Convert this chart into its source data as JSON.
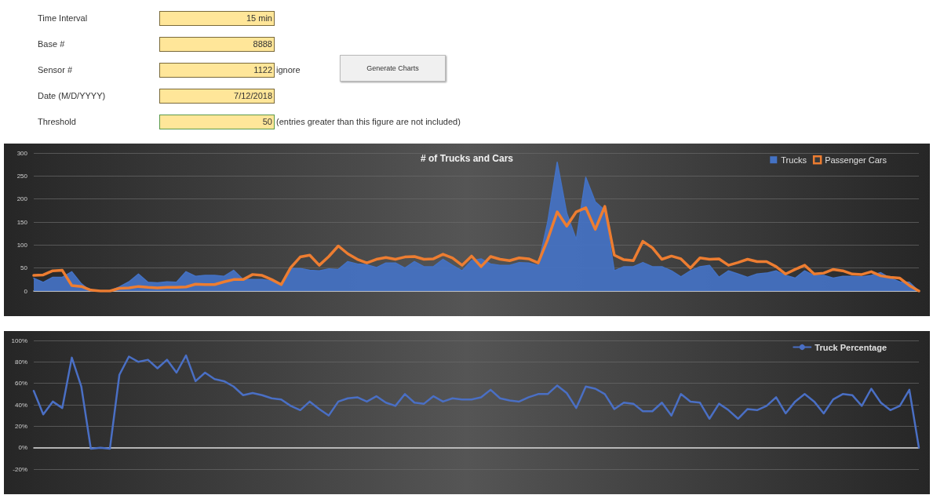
{
  "chart_data": [
    {
      "type": "other",
      "categories": [
        "Time Interval",
        "Base #",
        "Sensor #",
        "Date (M/D/YYYY)",
        "Threshold"
      ],
      "value_labels": [
        "15 min",
        "8888",
        "1122",
        "7/12/2018",
        "50"
      ],
      "annotations": [
        "ignore",
        "(entries greater than this figure are not included)",
        "Generate Charts"
      ]
    },
    {
      "type": "area",
      "title": "# of Trucks and Cars",
      "categories": [
        null,
        null,
        null,
        null,
        null,
        null,
        null,
        null,
        null,
        null,
        null,
        null,
        null,
        null,
        null,
        null,
        null,
        null,
        null,
        null,
        null,
        null,
        null,
        null,
        null,
        null,
        null,
        null,
        null,
        null,
        null,
        null,
        null,
        null,
        null,
        null,
        null,
        null,
        null,
        null,
        null,
        null,
        null,
        null,
        null,
        null,
        null,
        null,
        null,
        null,
        null,
        null,
        null,
        null,
        null,
        null,
        null,
        null,
        null,
        null,
        null,
        null,
        null,
        null,
        null,
        null,
        null,
        null,
        null,
        null,
        null,
        null,
        null,
        null,
        null,
        null,
        null,
        null,
        null,
        null,
        null,
        null,
        null,
        null,
        null,
        null,
        null,
        null,
        null,
        null,
        null,
        null,
        null,
        null
      ],
      "ylim": [
        0,
        300
      ],
      "yticks": [
        0,
        50,
        100,
        150,
        200,
        250,
        300
      ],
      "grid": "y",
      "legend": "top right",
      "series": [
        {
          "name": "Trucks",
          "type": "area",
          "color": "#4472c4",
          "values": [
            28,
            19,
            30,
            30,
            42,
            16,
            0,
            0,
            0,
            9,
            20,
            37,
            19,
            18,
            20,
            19,
            42,
            32,
            34,
            34,
            32,
            45,
            25,
            25,
            25,
            22,
            12,
            49,
            49,
            45,
            44,
            48,
            47,
            64,
            59,
            57,
            51,
            61,
            61,
            50,
            64,
            53,
            53,
            69,
            56,
            44,
            66,
            70,
            59,
            56,
            56,
            62,
            61,
            56,
            150,
            280,
            169,
            112,
            247,
            194,
            175,
            44,
            53,
            53,
            62,
            53,
            53,
            44,
            31,
            44,
            53,
            56,
            30,
            44,
            37,
            30,
            37,
            39,
            44,
            34,
            28,
            44,
            34,
            34,
            28,
            32,
            32,
            31,
            34,
            40,
            28,
            20,
            19,
            0
          ]
        },
        {
          "name": "Passenger Cars",
          "type": "line",
          "color": "#ed7d31",
          "values": [
            34,
            35,
            44,
            45,
            12,
            10,
            2,
            0,
            0,
            6,
            7,
            10,
            8,
            7,
            8,
            8,
            9,
            15,
            14,
            14,
            20,
            25,
            25,
            36,
            34,
            25,
            14,
            51,
            74,
            78,
            56,
            75,
            98,
            81,
            69,
            61,
            69,
            73,
            69,
            74,
            75,
            69,
            70,
            80,
            72,
            56,
            76,
            53,
            75,
            69,
            66,
            72,
            70,
            61,
            112,
            172,
            141,
            172,
            181,
            134,
            184,
            78,
            68,
            66,
            108,
            94,
            69,
            76,
            70,
            50,
            72,
            69,
            70,
            56,
            62,
            69,
            64,
            64,
            53,
            37,
            47,
            56,
            37,
            39,
            47,
            44,
            37,
            36,
            42,
            33,
            30,
            28,
            12,
            0
          ]
        }
      ]
    },
    {
      "type": "line",
      "categories": [
        null,
        null,
        null,
        null,
        null,
        null,
        null,
        null,
        null,
        null,
        null,
        null,
        null,
        null,
        null,
        null,
        null,
        null,
        null,
        null,
        null,
        null,
        null,
        null,
        null,
        null,
        null,
        null,
        null,
        null,
        null,
        null,
        null,
        null,
        null,
        null,
        null,
        null,
        null,
        null,
        null,
        null,
        null,
        null,
        null,
        null,
        null,
        null,
        null,
        null,
        null,
        null,
        null,
        null,
        null,
        null,
        null,
        null,
        null,
        null,
        null,
        null,
        null,
        null,
        null,
        null,
        null,
        null,
        null,
        null,
        null,
        null,
        null,
        null,
        null,
        null,
        null,
        null,
        null,
        null,
        null,
        null,
        null,
        null,
        null,
        null,
        null,
        null,
        null,
        null,
        null,
        null,
        null,
        null
      ],
      "ylim": [
        -20,
        100
      ],
      "yticks": [
        {
          "value": -20,
          "label": "-20%"
        },
        {
          "value": 0,
          "label": "0%"
        },
        {
          "value": 20,
          "label": "20%"
        },
        {
          "value": 40,
          "label": "40%"
        },
        {
          "value": 60,
          "label": "60%"
        },
        {
          "value": 80,
          "label": "80%"
        },
        {
          "value": 100,
          "label": "100%"
        }
      ],
      "grid": "y",
      "legend": "top right",
      "series": [
        {
          "name": "Truck Percentage",
          "color": "#4a6fc4",
          "values": [
            53,
            31,
            43,
            37,
            84,
            57,
            -1,
            0,
            -1,
            68,
            85,
            80,
            82,
            74,
            82,
            70,
            86,
            62,
            70,
            64,
            62,
            57,
            49,
            51,
            49,
            46,
            45,
            39,
            35,
            43,
            36,
            30,
            43,
            46,
            47,
            43,
            48,
            42,
            39,
            50,
            42,
            41,
            48,
            43,
            46,
            45,
            45,
            47,
            54,
            46,
            44,
            43,
            47,
            50,
            50,
            58,
            51,
            37,
            57,
            55,
            50,
            36,
            42,
            41,
            34,
            34,
            42,
            30,
            50,
            43,
            42,
            27,
            41,
            35,
            27,
            36,
            35,
            39,
            47,
            32,
            43,
            50,
            43,
            32,
            45,
            50,
            49,
            39,
            55,
            42,
            35,
            39,
            54,
            0
          ]
        }
      ]
    }
  ]
}
